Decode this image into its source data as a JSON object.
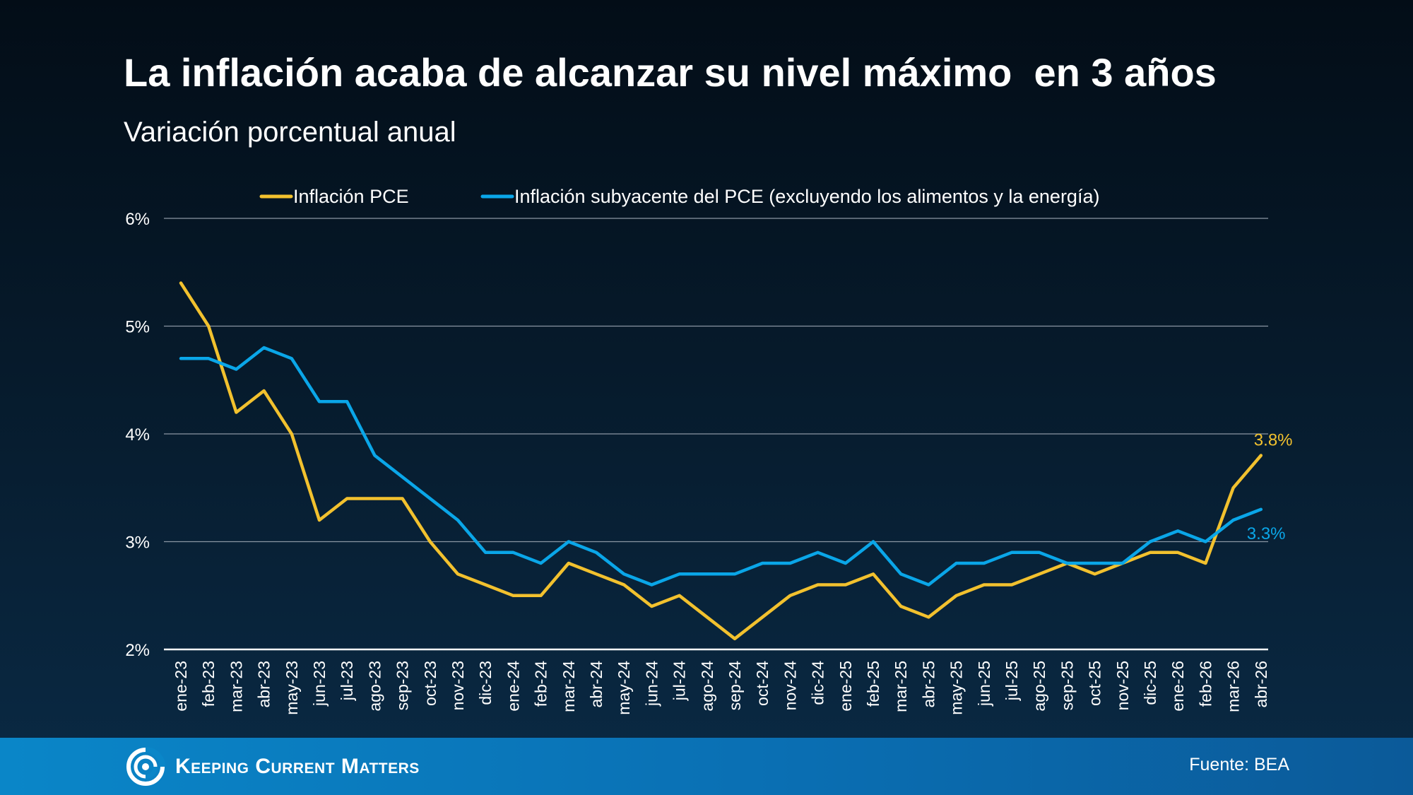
{
  "header": {
    "title": "La inflación acaba de alcanzar su nivel máximo  en 3 años",
    "subtitle": "Variación porcentual anual"
  },
  "footer": {
    "brand": "Keeping Current Matters",
    "source": "Fuente: BEA"
  },
  "colors": {
    "pce": "#f2c12e",
    "core": "#0aa6e8",
    "grid": "#8a96a3",
    "axis": "#ffffff"
  },
  "chart_data": {
    "type": "line",
    "x": [
      "ene-23",
      "feb-23",
      "mar-23",
      "abr-23",
      "may-23",
      "jun-23",
      "jul-23",
      "ago-23",
      "sep-23",
      "oct-23",
      "nov-23",
      "dic-23",
      "ene-24",
      "feb-24",
      "mar-24",
      "abr-24",
      "may-24",
      "jun-24",
      "jul-24",
      "ago-24",
      "sep-24",
      "oct-24",
      "nov-24",
      "dic-24",
      "ene-25",
      "feb-25",
      "mar-25",
      "abr-25",
      "may-25",
      "jun-25",
      "jul-25",
      "ago-25",
      "sep-25",
      "oct-25",
      "nov-25",
      "dic-25",
      "ene-26",
      "feb-26",
      "mar-26",
      "abr-26"
    ],
    "series": [
      {
        "name": "Inflación PCE",
        "color": "#f2c12e",
        "values": [
          5.4,
          5.0,
          4.2,
          4.4,
          4.0,
          3.2,
          3.4,
          3.4,
          3.4,
          3.0,
          2.7,
          2.6,
          2.5,
          2.5,
          2.8,
          2.7,
          2.6,
          2.4,
          2.5,
          2.3,
          2.1,
          2.3,
          2.5,
          2.6,
          2.6,
          2.7,
          2.4,
          2.3,
          2.5,
          2.6,
          2.6,
          2.7,
          2.8,
          2.7,
          2.8,
          2.9,
          2.9,
          2.8,
          3.5,
          3.8
        ],
        "end_label": "3.8%"
      },
      {
        "name": "Inflación subyacente del PCE (excluyendo los alimentos y la energía)",
        "color": "#0aa6e8",
        "values": [
          4.7,
          4.7,
          4.6,
          4.8,
          4.7,
          4.3,
          4.3,
          3.8,
          3.6,
          3.4,
          3.2,
          2.9,
          2.9,
          2.8,
          3.0,
          2.9,
          2.7,
          2.6,
          2.7,
          2.7,
          2.7,
          2.8,
          2.8,
          2.9,
          2.8,
          3.0,
          2.7,
          2.6,
          2.8,
          2.8,
          2.9,
          2.9,
          2.8,
          2.8,
          2.8,
          3.0,
          3.1,
          3.0,
          3.2,
          3.3
        ],
        "end_label": "3.3%"
      }
    ],
    "ylim": [
      2,
      6
    ],
    "yticks": [
      2,
      3,
      4,
      5,
      6
    ],
    "ytick_labels": [
      "2%",
      "3%",
      "4%",
      "5%",
      "6%"
    ],
    "grid": true,
    "legend_position": "top-center"
  }
}
